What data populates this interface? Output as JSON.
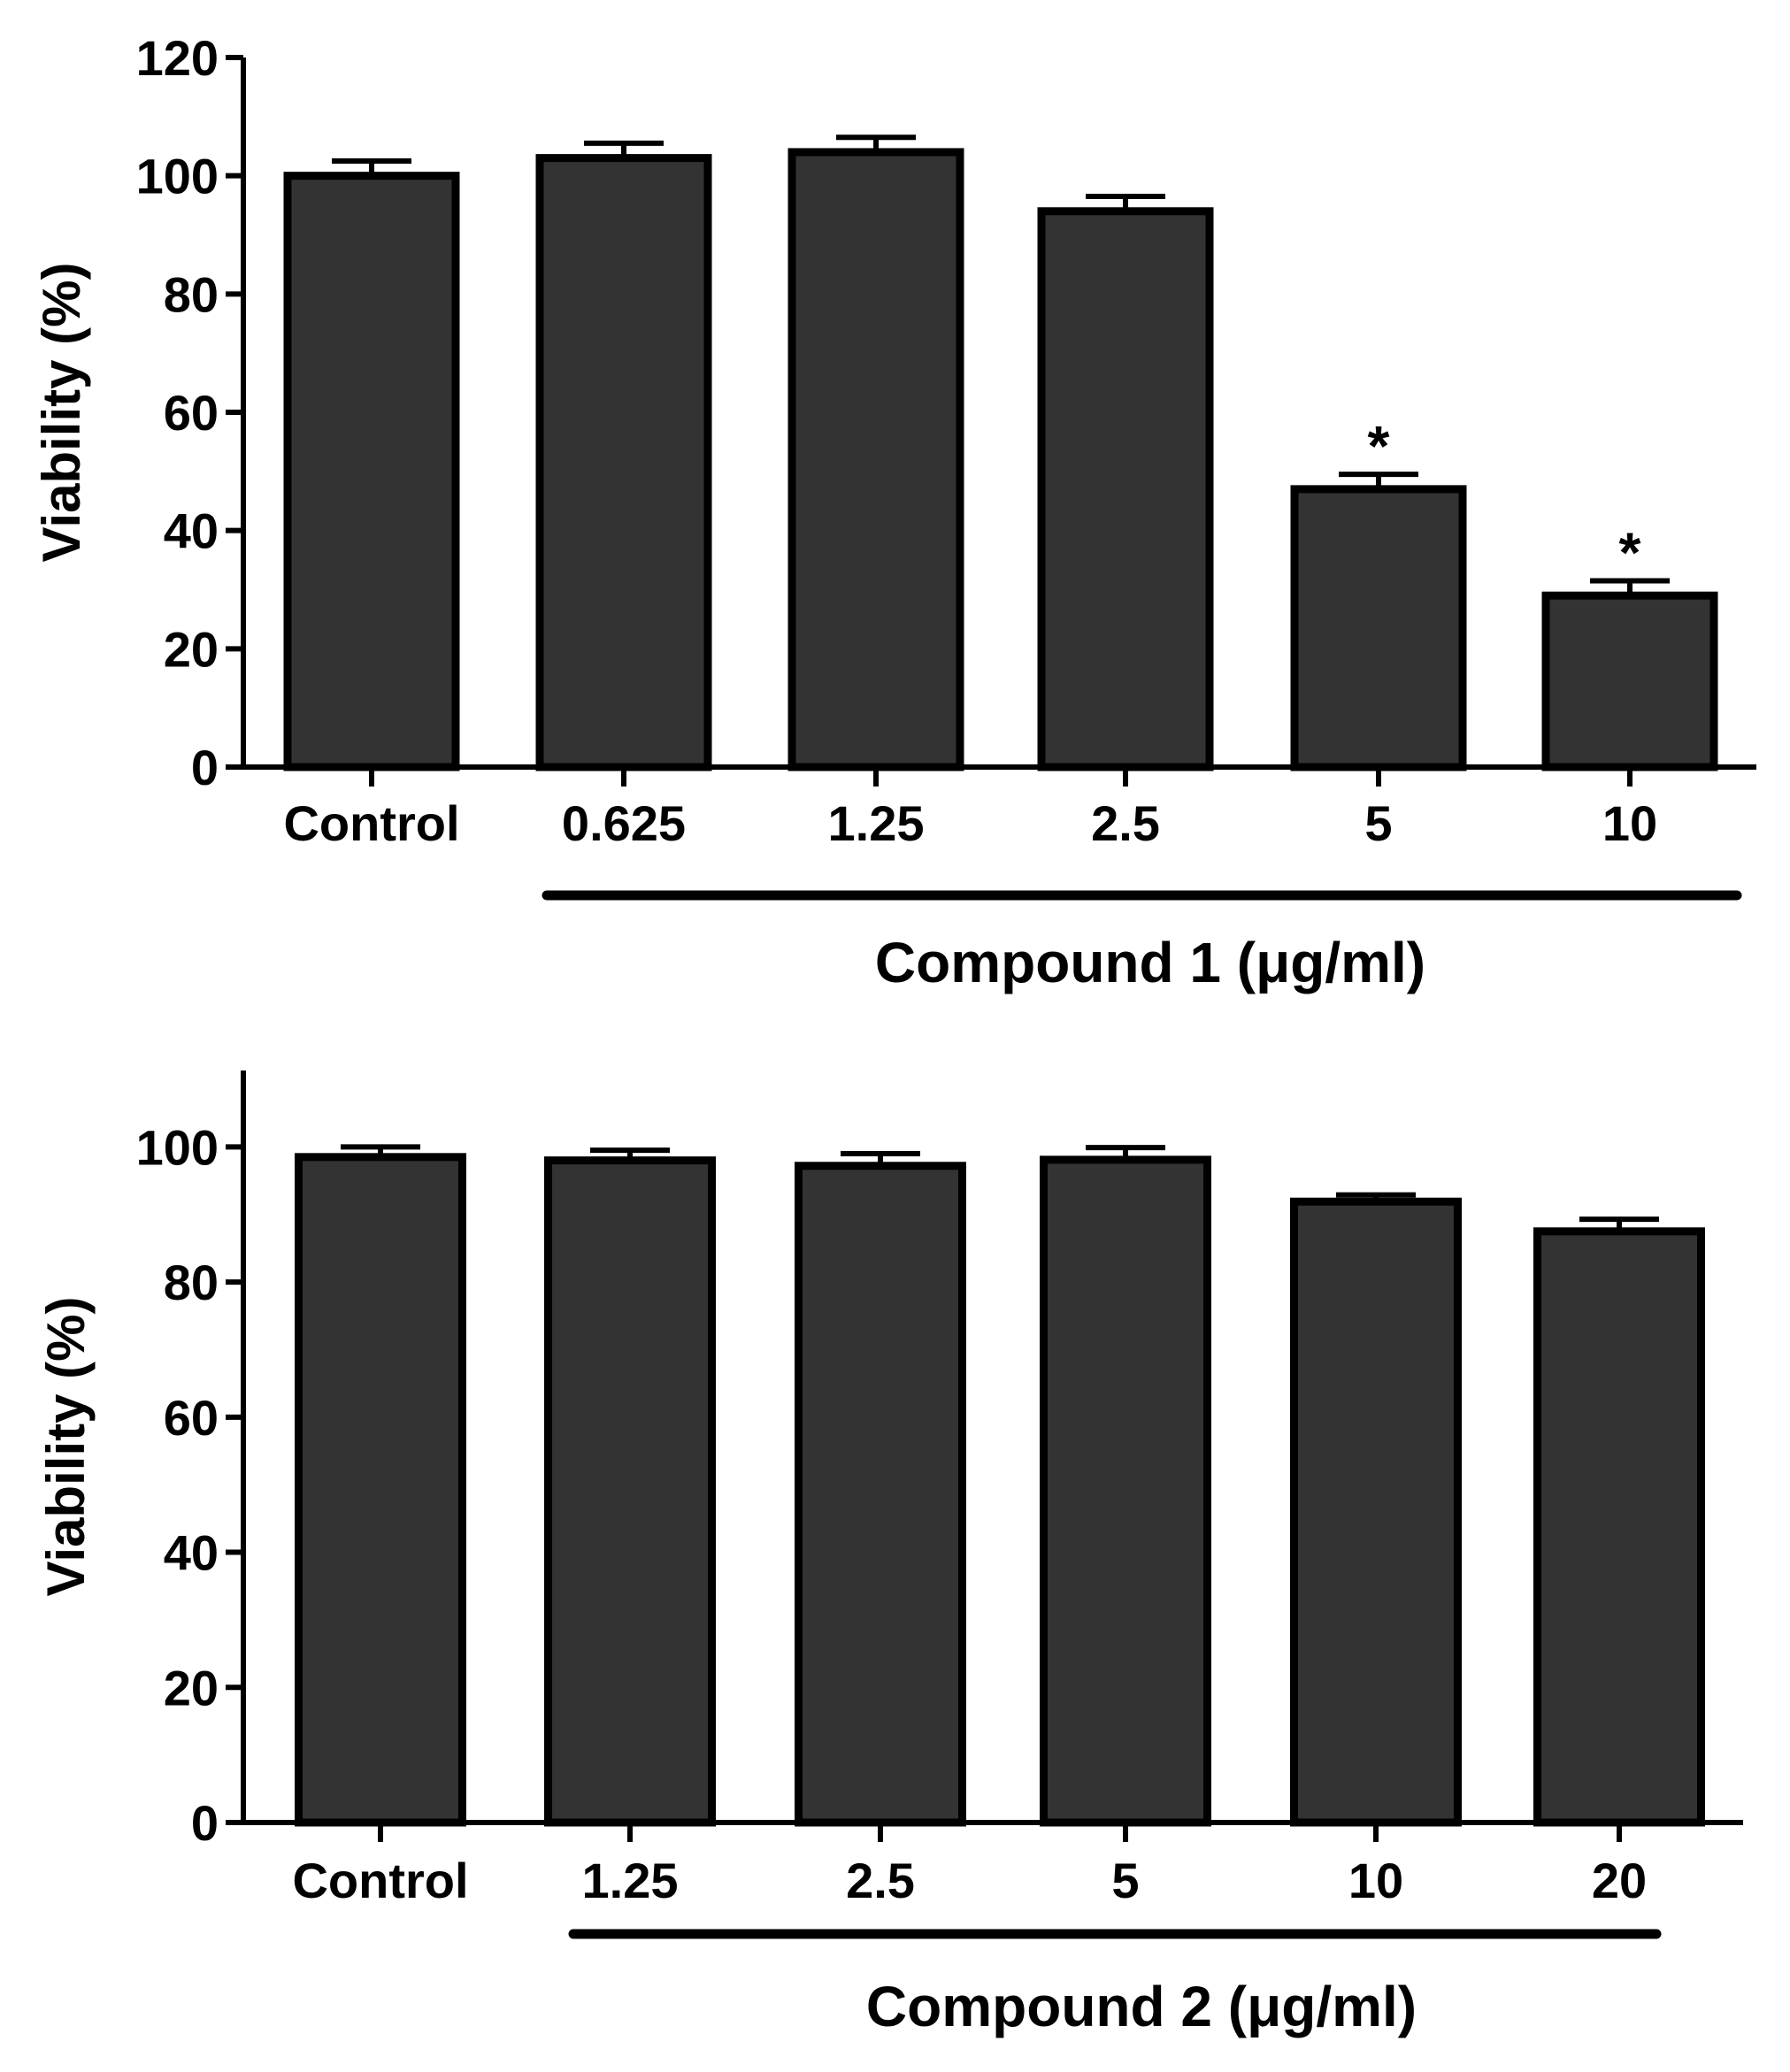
{
  "colors": {
    "bar_fill": "#333333",
    "bar_stroke": "#000000",
    "axis": "#000000",
    "background": "#ffffff"
  },
  "chart_data": [
    {
      "type": "bar",
      "title": "",
      "ylabel": "Viability (%)",
      "xlabel": "Compound 1 (μg/ml)",
      "ylim": [
        0,
        120
      ],
      "yticks": [
        "0",
        "20",
        "40",
        "60",
        "80",
        "100",
        "120"
      ],
      "categories": [
        "Control",
        "0.625",
        "1.25",
        "2.5",
        "5",
        "10"
      ],
      "values": [
        100,
        103,
        104,
        94,
        47,
        29
      ],
      "errors": [
        2.5,
        2.5,
        2.5,
        2.5,
        2.5,
        2.5
      ],
      "annotations": [
        "",
        "",
        "",
        "",
        "*",
        "*"
      ],
      "group_bar": {
        "from_index": 1,
        "to_index": 5
      }
    },
    {
      "type": "bar",
      "title": "",
      "ylabel": "Viability (%)",
      "xlabel": "Compound 2 (μg/ml)",
      "ylim": [
        0,
        110
      ],
      "yticks": [
        "0",
        "20",
        "40",
        "60",
        "80",
        "100"
      ],
      "categories": [
        "Control",
        "1.25",
        "2.5",
        "5",
        "10",
        "20"
      ],
      "values": [
        98.5,
        98,
        97.2,
        98.1,
        91.9,
        87.5
      ],
      "errors": [
        1.5,
        1.5,
        1.8,
        1.8,
        1.0,
        1.8
      ],
      "annotations": [
        "",
        "",
        "",
        "",
        "",
        ""
      ],
      "group_bar": {
        "from_index": 1,
        "to_index": 5
      }
    }
  ]
}
